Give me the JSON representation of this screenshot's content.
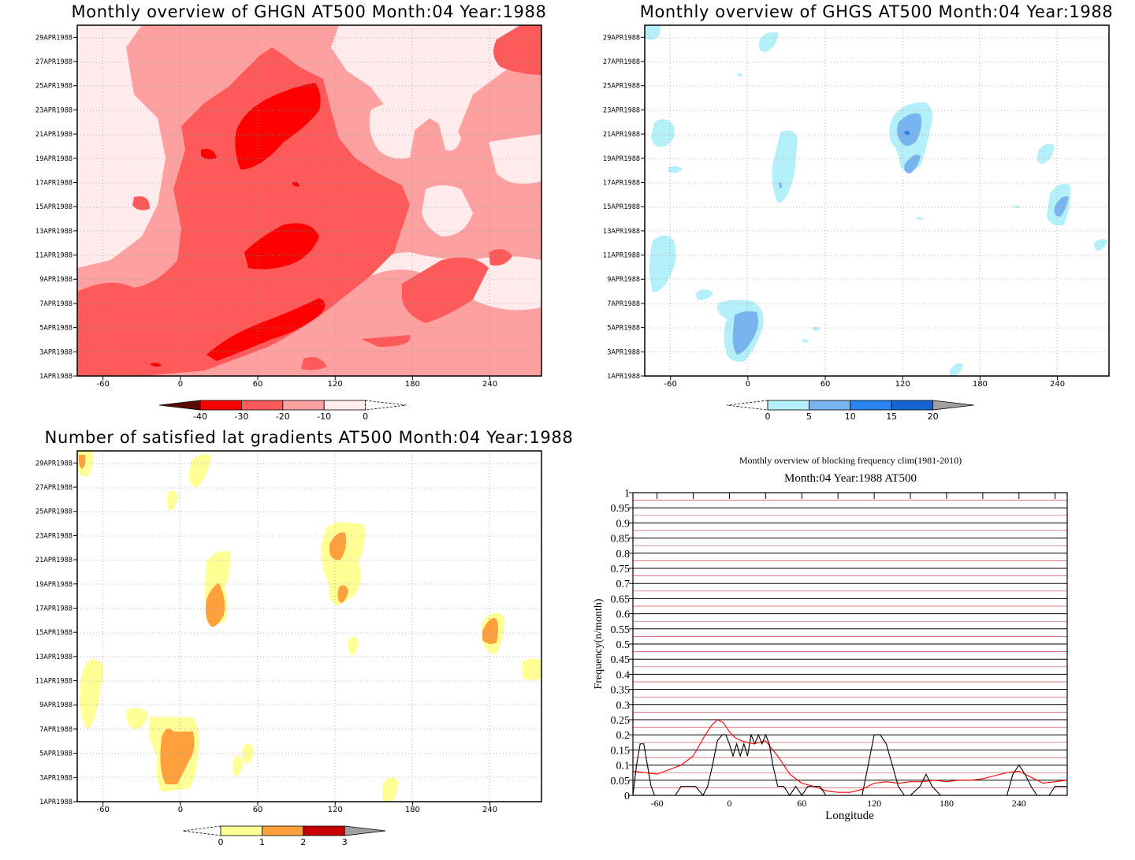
{
  "panels": [
    {
      "title": "Monthly overview of GHGN AT500 Month:04 Year:1988",
      "colorbar": {
        "labels": [
          "-40",
          "-30",
          "-20",
          "-10",
          "0"
        ],
        "colors": [
          "#5a0a00",
          "#ff0000",
          "#ff5a5a",
          "#ffa0a0",
          "#ffebeb"
        ]
      }
    },
    {
      "title": "Monthly overview of GHGS AT500 Month:04 Year:1988",
      "colorbar": {
        "labels": [
          "0",
          "5",
          "10",
          "15",
          "20"
        ],
        "colors": [
          "#b4f0fa",
          "#78b4f0",
          "#2882f0",
          "#1464d2",
          "#a0a0a0"
        ]
      }
    },
    {
      "title": "Number of satisfied lat gradients AT500 Month:04 Year:1988",
      "colorbar": {
        "labels": [
          "0",
          "1",
          "2",
          "3"
        ],
        "colors": [
          "#ffff96",
          "#ffa03c",
          "#c80000",
          "#a0a0a0"
        ]
      }
    }
  ],
  "date_ticks": [
    "1APR1988",
    "3APR1988",
    "5APR1988",
    "7APR1988",
    "9APR1988",
    "11APR1988",
    "13APR1988",
    "15APR1988",
    "17APR1988",
    "19APR1988",
    "21APR1988",
    "23APR1988",
    "25APR1988",
    "27APR1988",
    "29APR1988"
  ],
  "lon_ticks": [
    "-60",
    "0",
    "60",
    "120",
    "180",
    "240"
  ],
  "chart_data": [
    {
      "type": "heatmap",
      "title": "Monthly overview of GHGN AT500 Month:04 Year:1988",
      "x_range": [
        -80,
        280
      ],
      "y_range": [
        "1APR1988",
        "30APR1988"
      ],
      "levels": [
        -40,
        -30,
        -20,
        -10,
        0
      ],
      "note_values": "filled contours of GHGN; dominant -10 to -30 band from lower-left to upper-center, minima below -30 near lon 40-100"
    },
    {
      "type": "heatmap",
      "title": "Monthly overview of GHGS AT500 Month:04 Year:1988",
      "x_range": [
        -80,
        280
      ],
      "y_range": [
        "1APR1988",
        "30APR1988"
      ],
      "levels": [
        0,
        5,
        10,
        15,
        20
      ],
      "note_values": "sparse positive patches: near lon 0 (4-7 Apr, >5), lon 120 (19-23 Apr, >10), lon 240 (14-17 Apr, >5)"
    },
    {
      "type": "heatmap",
      "title": "Number of satisfied lat gradients AT500 Month:04 Year:1988",
      "x_range": [
        -80,
        280
      ],
      "y_range": [
        "1APR1988",
        "30APR1988"
      ],
      "levels": [
        0,
        1,
        2,
        3
      ],
      "note_values": "values 1-2 near lon -10 (3-7 Apr), lon 30 (16-21 Apr), lon 125 (18-23 Apr), lon 240 (14-17 Apr)"
    },
    {
      "type": "line",
      "title": "Monthly overview of blocking frequency clim(1981-2010)",
      "subtitle": "Month:04 Year:1988  AT500",
      "xlabel": "Longitude",
      "ylabel": "Frequency(n/month)",
      "xlim": [
        -80,
        280
      ],
      "ylim": [
        0,
        1
      ],
      "x_ticks": [
        "-60",
        "0",
        "60",
        "120",
        "180",
        "240"
      ],
      "y_ticks": [
        "0",
        "0.05",
        "0.1",
        "0.15",
        "0.2",
        "0.25",
        "0.3",
        "0.35",
        "0.4",
        "0.45",
        "0.5",
        "0.55",
        "0.6",
        "0.65",
        "0.7",
        "0.75",
        "0.8",
        "0.85",
        "0.9",
        "0.95",
        "1"
      ],
      "series": [
        {
          "color": "#ff0000",
          "x": [
            -80,
            -70,
            -60,
            -50,
            -40,
            -30,
            -20,
            -15,
            -10,
            -5,
            0,
            5,
            10,
            20,
            30,
            40,
            50,
            60,
            70,
            80,
            90,
            100,
            110,
            120,
            130,
            140,
            150,
            160,
            170,
            180,
            190,
            200,
            210,
            220,
            230,
            240,
            250,
            260,
            270,
            280
          ],
          "y": [
            0.08,
            0.075,
            0.07,
            0.085,
            0.1,
            0.13,
            0.2,
            0.23,
            0.25,
            0.24,
            0.21,
            0.19,
            0.18,
            0.17,
            0.18,
            0.13,
            0.07,
            0.04,
            0.03,
            0.015,
            0.01,
            0.01,
            0.02,
            0.04,
            0.045,
            0.04,
            0.045,
            0.045,
            0.05,
            0.045,
            0.05,
            0.05,
            0.055,
            0.065,
            0.075,
            0.08,
            0.06,
            0.04,
            0.045,
            0.05
          ]
        },
        {
          "color": "#000000",
          "x": [
            -80,
            -77,
            -74,
            -71,
            -68,
            -65,
            -62,
            -58,
            -55,
            -45,
            -40,
            -35,
            -28,
            -22,
            -18,
            -14,
            -10,
            -6,
            -3,
            0,
            3,
            6,
            9,
            12,
            15,
            18,
            21,
            24,
            27,
            30,
            33,
            36,
            40,
            45,
            50,
            55,
            60,
            65,
            75,
            80,
            90,
            110,
            115,
            120,
            125,
            130,
            135,
            140,
            145,
            150,
            158,
            163,
            168,
            175,
            200,
            230,
            235,
            240,
            245,
            250,
            255,
            265,
            270,
            280
          ],
          "y": [
            0,
            0.1,
            0.17,
            0.17,
            0.1,
            0.03,
            0,
            0,
            0,
            0,
            0.03,
            0.03,
            0.03,
            0,
            0.03,
            0.1,
            0.18,
            0.2,
            0.2,
            0.17,
            0.13,
            0.17,
            0.13,
            0.17,
            0.13,
            0.2,
            0.17,
            0.2,
            0.17,
            0.2,
            0.17,
            0.1,
            0.03,
            0.03,
            0,
            0.03,
            0,
            0.03,
            0.03,
            0,
            0,
            0,
            0.1,
            0.2,
            0.2,
            0.17,
            0.1,
            0.03,
            0,
            0,
            0.03,
            0.07,
            0.03,
            0,
            0,
            0,
            0.07,
            0.1,
            0.07,
            0.03,
            0,
            0,
            0.03,
            0.03
          ]
        }
      ]
    }
  ]
}
